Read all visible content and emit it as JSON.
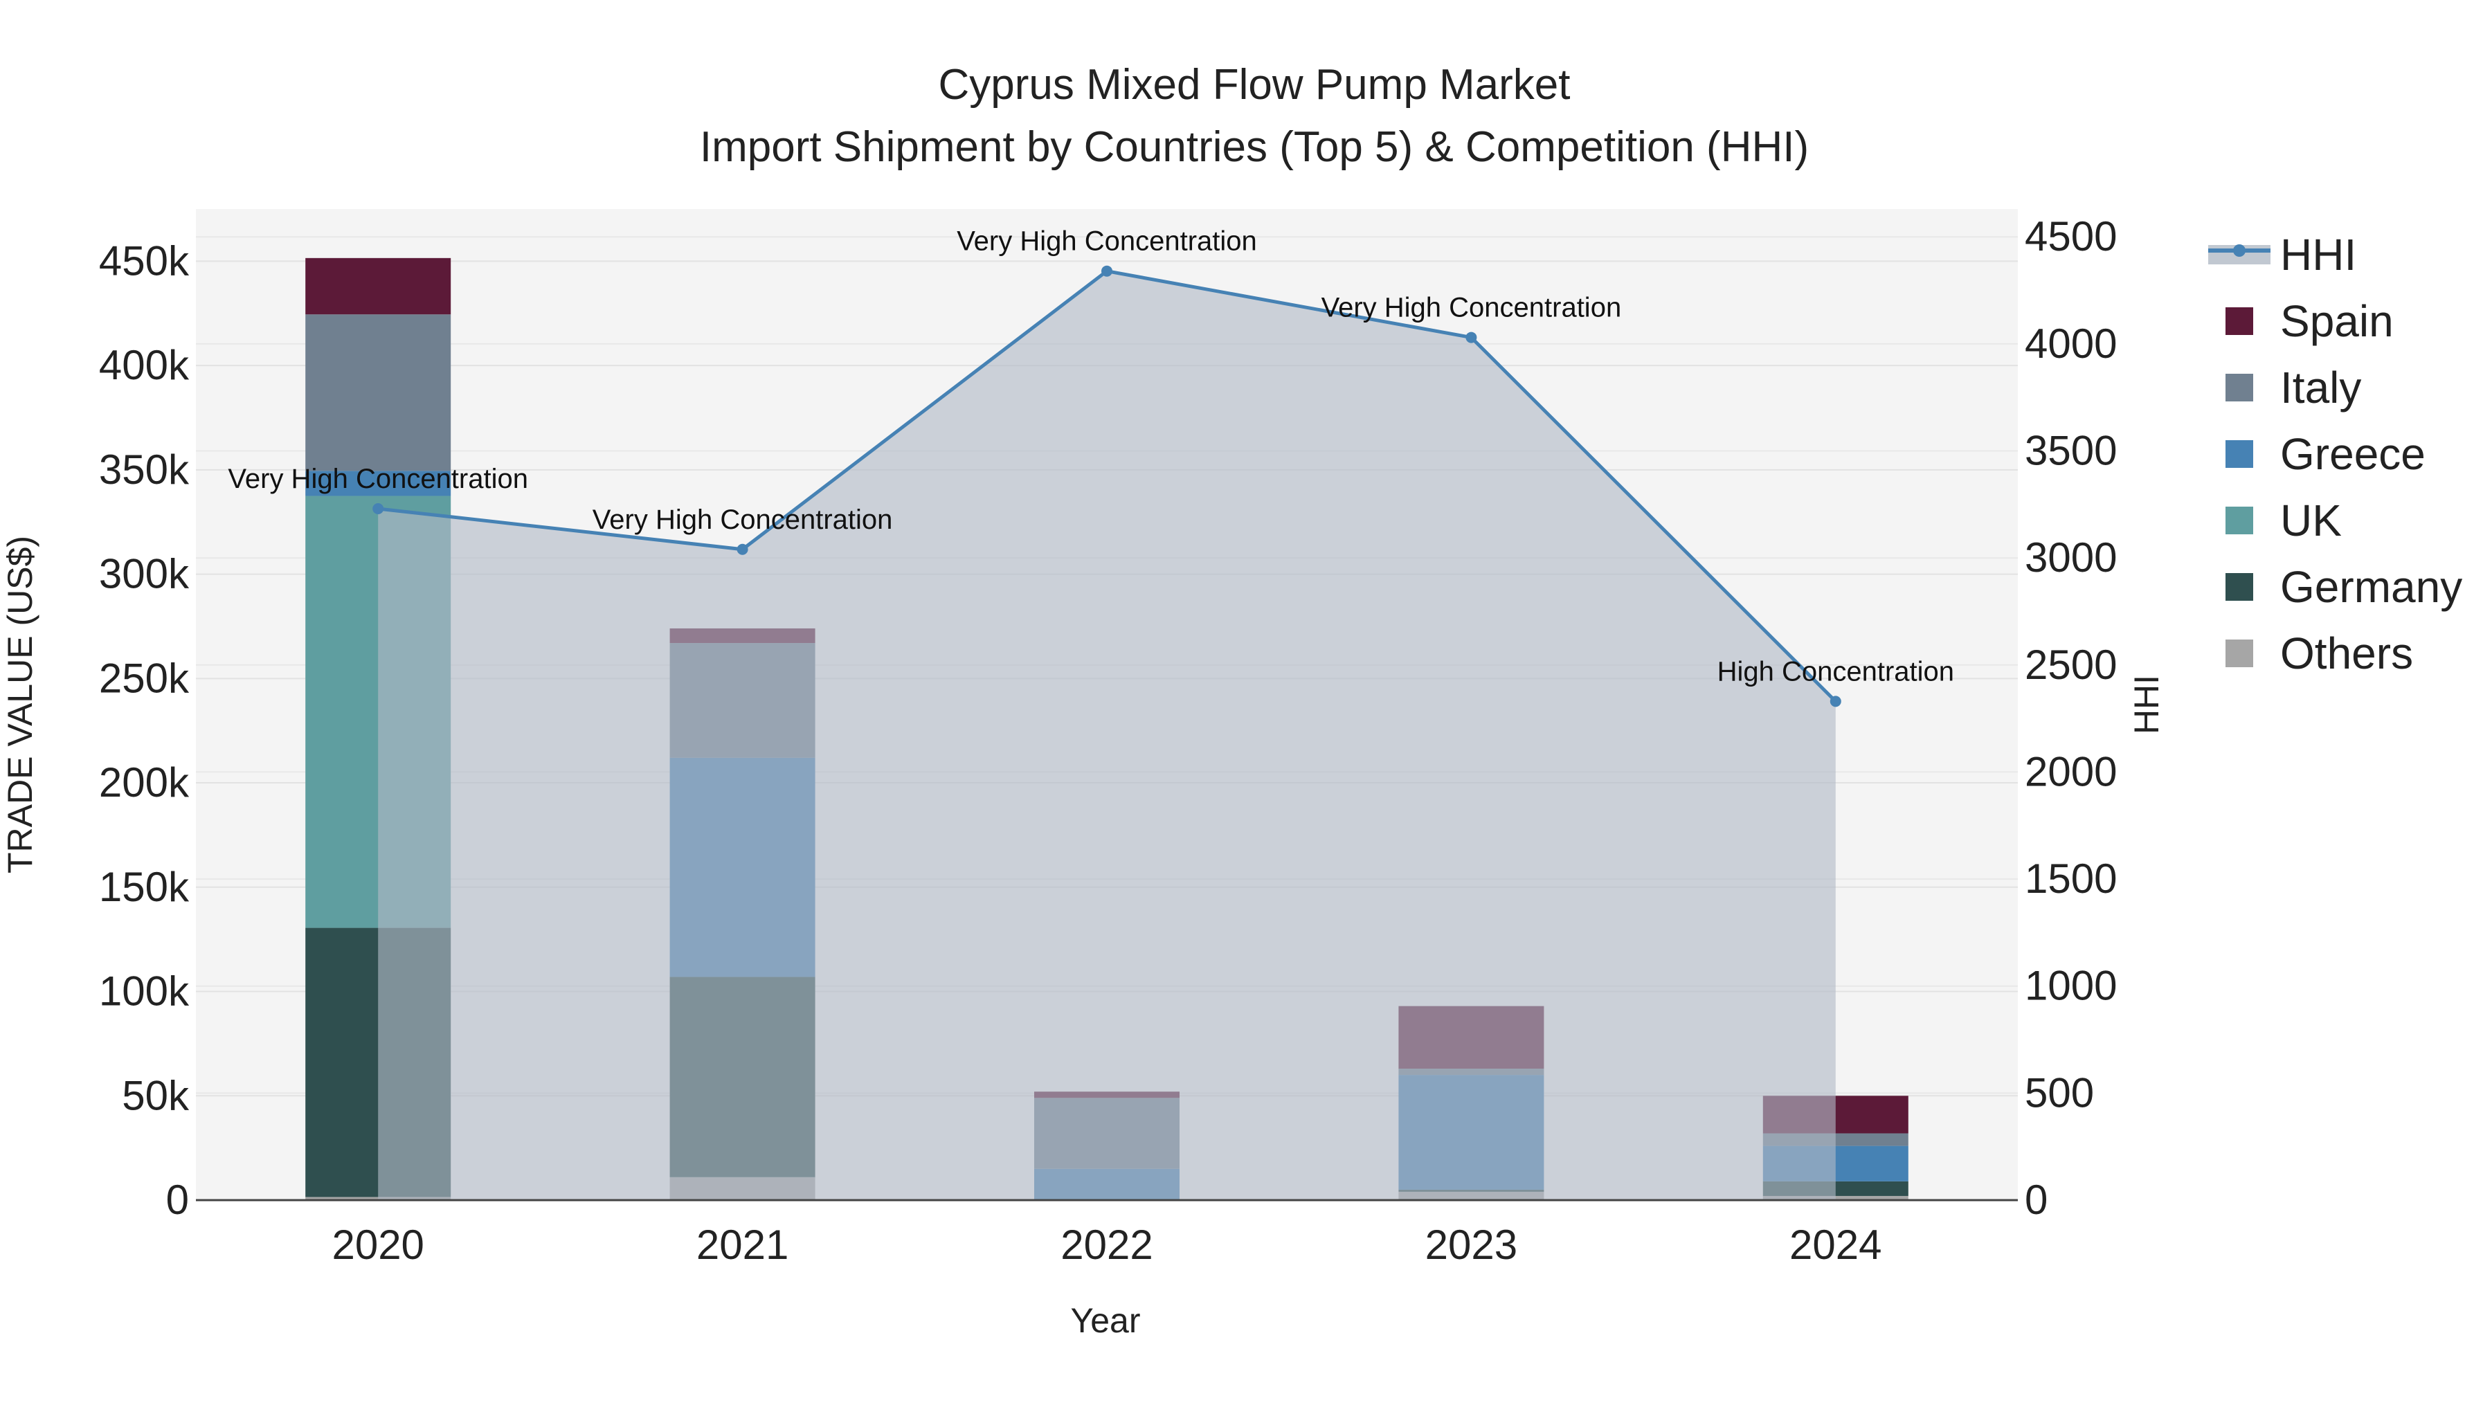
{
  "chart_data": {
    "type": "bar",
    "title_line1": "Cyprus Mixed Flow Pump Market",
    "title_line2": "Import Shipment by Countries (Top 5) & Competition (HHI)",
    "xlabel": "Year",
    "ylabel": "TRADE VALUE (US$)",
    "y2label": "HHI",
    "categories": [
      "2020",
      "2021",
      "2022",
      "2023",
      "2024"
    ],
    "ylim": [
      0,
      475000
    ],
    "y2lim": [
      0,
      4630
    ],
    "yticks": [
      0,
      50000,
      100000,
      150000,
      200000,
      250000,
      300000,
      350000,
      400000,
      450000
    ],
    "ytick_labels": [
      "0",
      "50k",
      "100k",
      "150k",
      "200k",
      "250k",
      "300k",
      "350k",
      "400k",
      "450k"
    ],
    "y2ticks": [
      0,
      500,
      1000,
      1500,
      2000,
      2500,
      3000,
      3500,
      4000,
      4500
    ],
    "y2tick_labels": [
      "0",
      "500",
      "1000",
      "1500",
      "2000",
      "2500",
      "3000",
      "3500",
      "4000",
      "4500"
    ],
    "stack_order": [
      "Others",
      "Germany",
      "UK",
      "Greece",
      "Italy",
      "Spain"
    ],
    "series": [
      {
        "name": "Others",
        "color": "#a6a6a6",
        "values": [
          1500,
          11000,
          0,
          4000,
          2000
        ]
      },
      {
        "name": "Germany",
        "color": "#2f4f4f",
        "values": [
          129000,
          96000,
          0,
          1000,
          7000
        ]
      },
      {
        "name": "UK",
        "color": "#5f9ea0",
        "values": [
          207000,
          0,
          0,
          0,
          0
        ]
      },
      {
        "name": "Greece",
        "color": "#4682b4",
        "values": [
          12000,
          105000,
          15000,
          55000,
          17000
        ]
      },
      {
        "name": "Italy",
        "color": "#708090",
        "values": [
          75000,
          55000,
          34000,
          3000,
          6000
        ]
      },
      {
        "name": "Spain",
        "color": "#5c1a38",
        "values": [
          27000,
          7000,
          3000,
          30000,
          18000
        ]
      }
    ],
    "hhi": {
      "name": "HHI",
      "color": "#4682b4",
      "values": [
        3230,
        3040,
        4340,
        4030,
        2330
      ],
      "labels": [
        "Very High Concentration",
        "Very High Concentration",
        "Very High Concentration",
        "Very High Concentration",
        "High Concentration"
      ]
    },
    "legend": [
      "HHI",
      "Spain",
      "Italy",
      "Greece",
      "UK",
      "Germany",
      "Others"
    ],
    "legend_position": "right"
  }
}
